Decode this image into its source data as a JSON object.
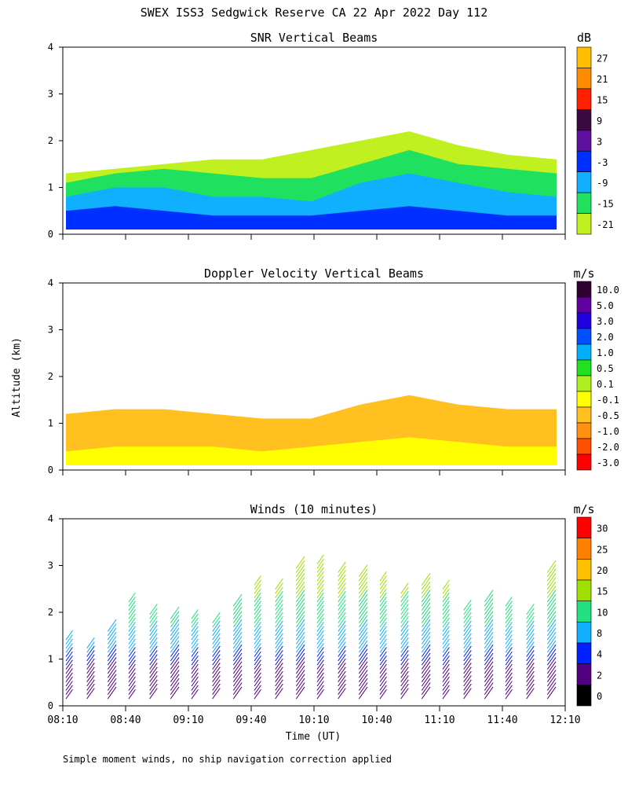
{
  "figure": {
    "title": "SWEX ISS3 Sedgwick Reserve CA  22 Apr 2022 Day 112",
    "ylabel": "Altitude (km)",
    "xlabel": "Time (UT)",
    "footnote": "Simple moment winds, no ship navigation correction applied"
  },
  "chart_data": [
    {
      "type": "heatmap",
      "title": "SNR Vertical Beams",
      "colorbar_unit": "dB",
      "colorbar_levels": [
        "27",
        "21",
        "15",
        "9",
        "3",
        "-3",
        "-9",
        "-15",
        "-21"
      ],
      "colorbar_colors": [
        "#ffbf00",
        "#ff8c00",
        "#ff2000",
        "#3a0a40",
        "#6010a0",
        "#0030ff",
        "#10b0ff",
        "#20e060",
        "#c0f020"
      ],
      "ylim": [
        0,
        4
      ],
      "yticks": [
        "0",
        "1",
        "2",
        "3",
        "4"
      ],
      "x_range": [
        "08:10",
        "12:10"
      ],
      "layers": [
        {
          "level": "-21",
          "alt_bottom": 0.1,
          "alt_top_by_time": [
            1.3,
            1.4,
            1.5,
            1.6,
            1.6,
            1.8,
            2.0,
            2.2,
            1.9,
            1.7,
            1.6
          ]
        },
        {
          "level": "-15",
          "alt_bottom": 0.1,
          "alt_top_by_time": [
            1.1,
            1.3,
            1.4,
            1.3,
            1.2,
            1.2,
            1.5,
            1.8,
            1.5,
            1.4,
            1.3
          ]
        },
        {
          "level": "-9",
          "alt_bottom": 0.1,
          "alt_top_by_time": [
            0.8,
            1.0,
            1.0,
            0.8,
            0.8,
            0.7,
            1.1,
            1.3,
            1.1,
            0.9,
            0.8
          ]
        },
        {
          "level": "-3",
          "alt_bottom": 0.1,
          "alt_top_by_time": [
            0.5,
            0.6,
            0.5,
            0.4,
            0.4,
            0.4,
            0.5,
            0.6,
            0.5,
            0.4,
            0.4
          ]
        }
      ]
    },
    {
      "type": "heatmap",
      "title": "Doppler Velocity Vertical Beams",
      "colorbar_unit": "m/s",
      "colorbar_levels": [
        "10.0",
        "5.0",
        "3.0",
        "2.0",
        "1.0",
        "0.5",
        "0.1",
        "-0.1",
        "-0.5",
        "-1.0",
        "-2.0",
        "-3.0"
      ],
      "colorbar_colors": [
        "#300030",
        "#6000a0",
        "#2000e0",
        "#0050ff",
        "#00b0ff",
        "#20e020",
        "#b0f020",
        "#ffff00",
        "#ffc020",
        "#ff9010",
        "#ff5000",
        "#ff0000"
      ],
      "ylim": [
        0,
        4
      ],
      "yticks": [
        "0",
        "1",
        "2",
        "3",
        "4"
      ],
      "x_range": [
        "08:10",
        "12:10"
      ],
      "layers": [
        {
          "level": "-0.5",
          "alt_bottom": 0.1,
          "alt_top_by_time": [
            1.2,
            1.3,
            1.3,
            1.2,
            1.1,
            1.1,
            1.4,
            1.6,
            1.4,
            1.3,
            1.3
          ]
        },
        {
          "level": "-0.1",
          "alt_bottom": 0.1,
          "alt_top_by_time": [
            0.4,
            0.5,
            0.5,
            0.5,
            0.4,
            0.5,
            0.6,
            0.7,
            0.6,
            0.5,
            0.5
          ]
        }
      ]
    },
    {
      "type": "scatter",
      "title": "Winds (10 minutes)",
      "colorbar_unit": "m/s",
      "colorbar_levels": [
        "30",
        "25",
        "20",
        "15",
        "10",
        "8",
        "4",
        "2",
        "0"
      ],
      "colorbar_colors": [
        "#ff0000",
        "#ff8000",
        "#ffc000",
        "#a0e000",
        "#20e080",
        "#10b0ff",
        "#0020ff",
        "#500080",
        "#000000"
      ],
      "ylim": [
        0,
        4
      ],
      "yticks": [
        "0",
        "1",
        "2",
        "3",
        "4"
      ],
      "xticks": [
        "08:10",
        "08:40",
        "09:10",
        "09:40",
        "10:10",
        "10:40",
        "11:10",
        "11:40",
        "12:10"
      ],
      "profile_times": [
        "08:10",
        "08:20",
        "08:30",
        "08:40",
        "08:50",
        "09:00",
        "09:10",
        "09:20",
        "09:30",
        "09:40",
        "09:50",
        "10:00",
        "10:10",
        "10:20",
        "10:30",
        "10:40",
        "10:50",
        "11:00",
        "11:10",
        "11:20",
        "11:30",
        "11:40",
        "11:50",
        "12:00"
      ],
      "profile_top_km": [
        1.5,
        1.3,
        1.6,
        2.3,
        2.0,
        1.9,
        1.9,
        1.8,
        2.2,
        2.6,
        2.5,
        3.0,
        3.1,
        2.9,
        2.8,
        2.7,
        2.4,
        2.6,
        2.5,
        2.1,
        2.3,
        2.2,
        2.0,
        2.9
      ]
    }
  ]
}
